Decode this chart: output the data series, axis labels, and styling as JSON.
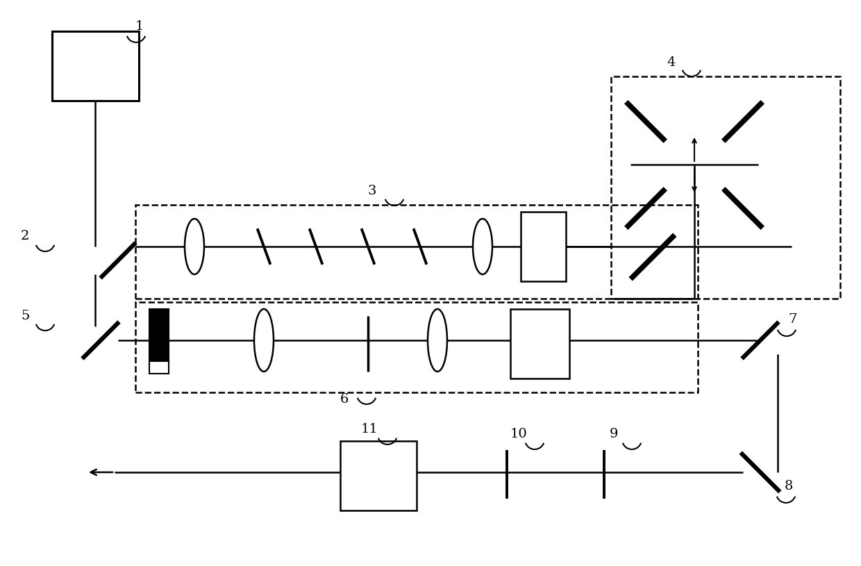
{
  "bg": "#ffffff",
  "lc": "#000000",
  "fig_w": 12.4,
  "fig_h": 8.15,
  "lw": 1.8,
  "tlw": 4.5,
  "dlw": 1.8
}
